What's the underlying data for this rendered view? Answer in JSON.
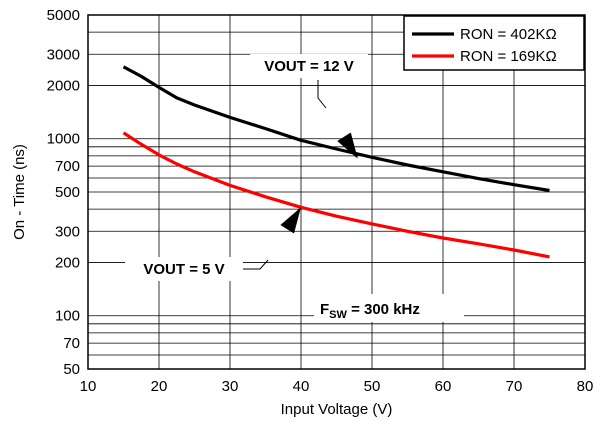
{
  "chart_data": {
    "type": "line",
    "title": "",
    "xlabel": "Input Voltage (V)",
    "ylabel": "On - Time (ns)",
    "xlim": [
      10,
      80
    ],
    "ylim": [
      50,
      5000
    ],
    "yscale": "log",
    "grid": true,
    "legend_position": "top-right",
    "x_ticks": [
      10,
      20,
      30,
      40,
      50,
      60,
      70,
      80
    ],
    "x_tick_labels": [
      "10",
      "20",
      "30",
      "40",
      "50",
      "60",
      "70",
      "80"
    ],
    "y_ticks": [
      50,
      70,
      100,
      200,
      300,
      500,
      700,
      1000,
      2000,
      3000,
      5000
    ],
    "y_tick_labels": [
      "50",
      "70",
      "100",
      "200",
      "300",
      "500",
      "700",
      "1000",
      "2000",
      "3000",
      "5000"
    ],
    "y_minor_gridlines": [
      60,
      80,
      90,
      400,
      600,
      800,
      900,
      4000
    ],
    "series": [
      {
        "name": "RON = 402KΩ",
        "color": "#000000",
        "x": [
          15,
          17.5,
          20,
          22.5,
          25,
          30,
          35,
          40,
          45,
          50,
          55,
          60,
          65,
          70,
          75
        ],
        "y": [
          2550,
          2250,
          1950,
          1700,
          1550,
          1320,
          1140,
          980,
          875,
          785,
          710,
          650,
          595,
          550,
          510
        ]
      },
      {
        "name": "RON = 169KΩ",
        "color": "#ff0000",
        "x": [
          15,
          17.5,
          20,
          22.5,
          25,
          30,
          35,
          40,
          45,
          50,
          55,
          60,
          65,
          70,
          75
        ],
        "y": [
          1080,
          930,
          810,
          720,
          650,
          545,
          470,
          410,
          365,
          330,
          300,
          275,
          255,
          235,
          215
        ]
      }
    ],
    "annotations": [
      {
        "id": "vout12",
        "text": "VOUT = 12 V",
        "point": [
          48,
          770
        ]
      },
      {
        "id": "vout5",
        "text": "VOUT = 5 V",
        "point": [
          40,
          410
        ]
      }
    ],
    "fsw": {
      "main": "F",
      "sub": "SW",
      "rest": " = 300 kHz"
    }
  }
}
